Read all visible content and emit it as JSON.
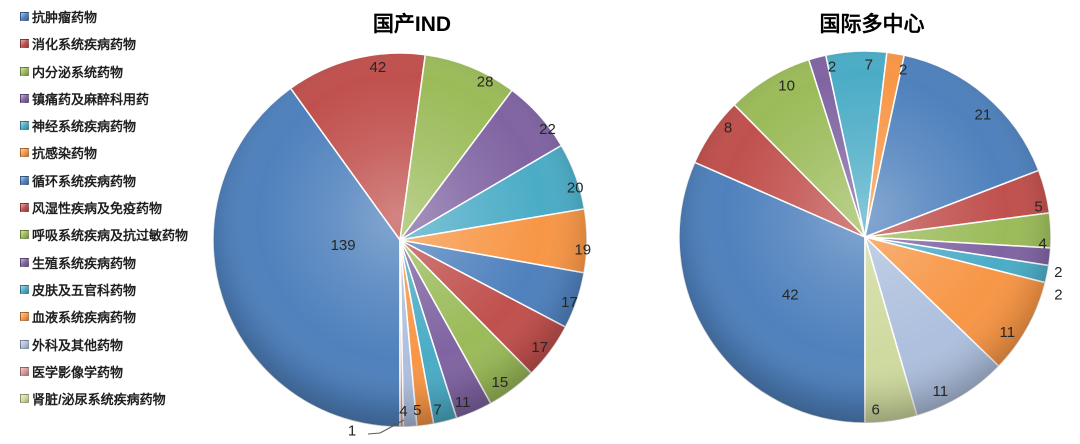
{
  "legend": {
    "items": [
      {
        "label": "抗肿瘤药物",
        "color": "#4F81BD"
      },
      {
        "label": "消化系统疾病药物",
        "color": "#C0504D"
      },
      {
        "label": "内分泌系统药物",
        "color": "#9BBB59"
      },
      {
        "label": "镇痛药及麻醉科用药",
        "color": "#8064A2"
      },
      {
        "label": "神经系统疾病药物",
        "color": "#4BACC6"
      },
      {
        "label": "抗感染药物",
        "color": "#F79646"
      },
      {
        "label": "循环系统疾病药物",
        "color": "#4F81BD"
      },
      {
        "label": "风湿性疾病及免疫药物",
        "color": "#C0504D"
      },
      {
        "label": "呼吸系统疾病及抗过敏药物",
        "color": "#9BBB59"
      },
      {
        "label": "生殖系统疾病药物",
        "color": "#8064A2"
      },
      {
        "label": "皮肤及五官科药物",
        "color": "#4BACC6"
      },
      {
        "label": "血液系统疾病药物",
        "color": "#F79646"
      },
      {
        "label": "外科及其他药物",
        "color": "#AEC0DE"
      },
      {
        "label": "医学影像学药物",
        "color": "#D99694"
      },
      {
        "label": "肾脏/泌尿系统疾病药物",
        "color": "#CFDA9F"
      }
    ]
  },
  "chart_data": [
    {
      "type": "pie",
      "title": "国产IND",
      "start_angle_deg": 180,
      "direction": "clockwise",
      "legend_position": "left",
      "categories": [
        "抗肿瘤药物",
        "消化系统疾病药物",
        "内分泌系统药物",
        "镇痛药及麻醉科用药",
        "神经系统疾病药物",
        "抗感染药物",
        "循环系统疾病药物",
        "风湿性疾病及免疫药物",
        "呼吸系统疾病及抗过敏药物",
        "生殖系统疾病药物",
        "皮肤及五官科药物",
        "血液系统疾病药物",
        "外科及其他药物",
        "医学影像学药物",
        "肾脏/泌尿系统疾病药物"
      ],
      "values": [
        139,
        42,
        28,
        22,
        20,
        19,
        17,
        17,
        15,
        11,
        7,
        5,
        4,
        1,
        0
      ],
      "total": 347
    },
    {
      "type": "pie",
      "title": "国际多中心",
      "start_angle_deg": 180,
      "direction": "clockwise",
      "legend_position": "left",
      "categories": [
        "抗肿瘤药物",
        "消化系统疾病药物",
        "内分泌系统药物",
        "镇痛药及麻醉科用药",
        "神经系统疾病药物",
        "抗感染药物",
        "循环系统疾病药物",
        "风湿性疾病及免疫药物",
        "呼吸系统疾病及抗过敏药物",
        "生殖系统疾病药物",
        "皮肤及五官科药物",
        "血液系统疾病药物",
        "外科及其他药物",
        "医学影像学药物",
        "肾脏/泌尿系统疾病药物"
      ],
      "values": [
        42,
        8,
        10,
        2,
        7,
        2,
        21,
        5,
        4,
        2,
        2,
        11,
        11,
        0,
        6
      ],
      "total": 133
    }
  ]
}
